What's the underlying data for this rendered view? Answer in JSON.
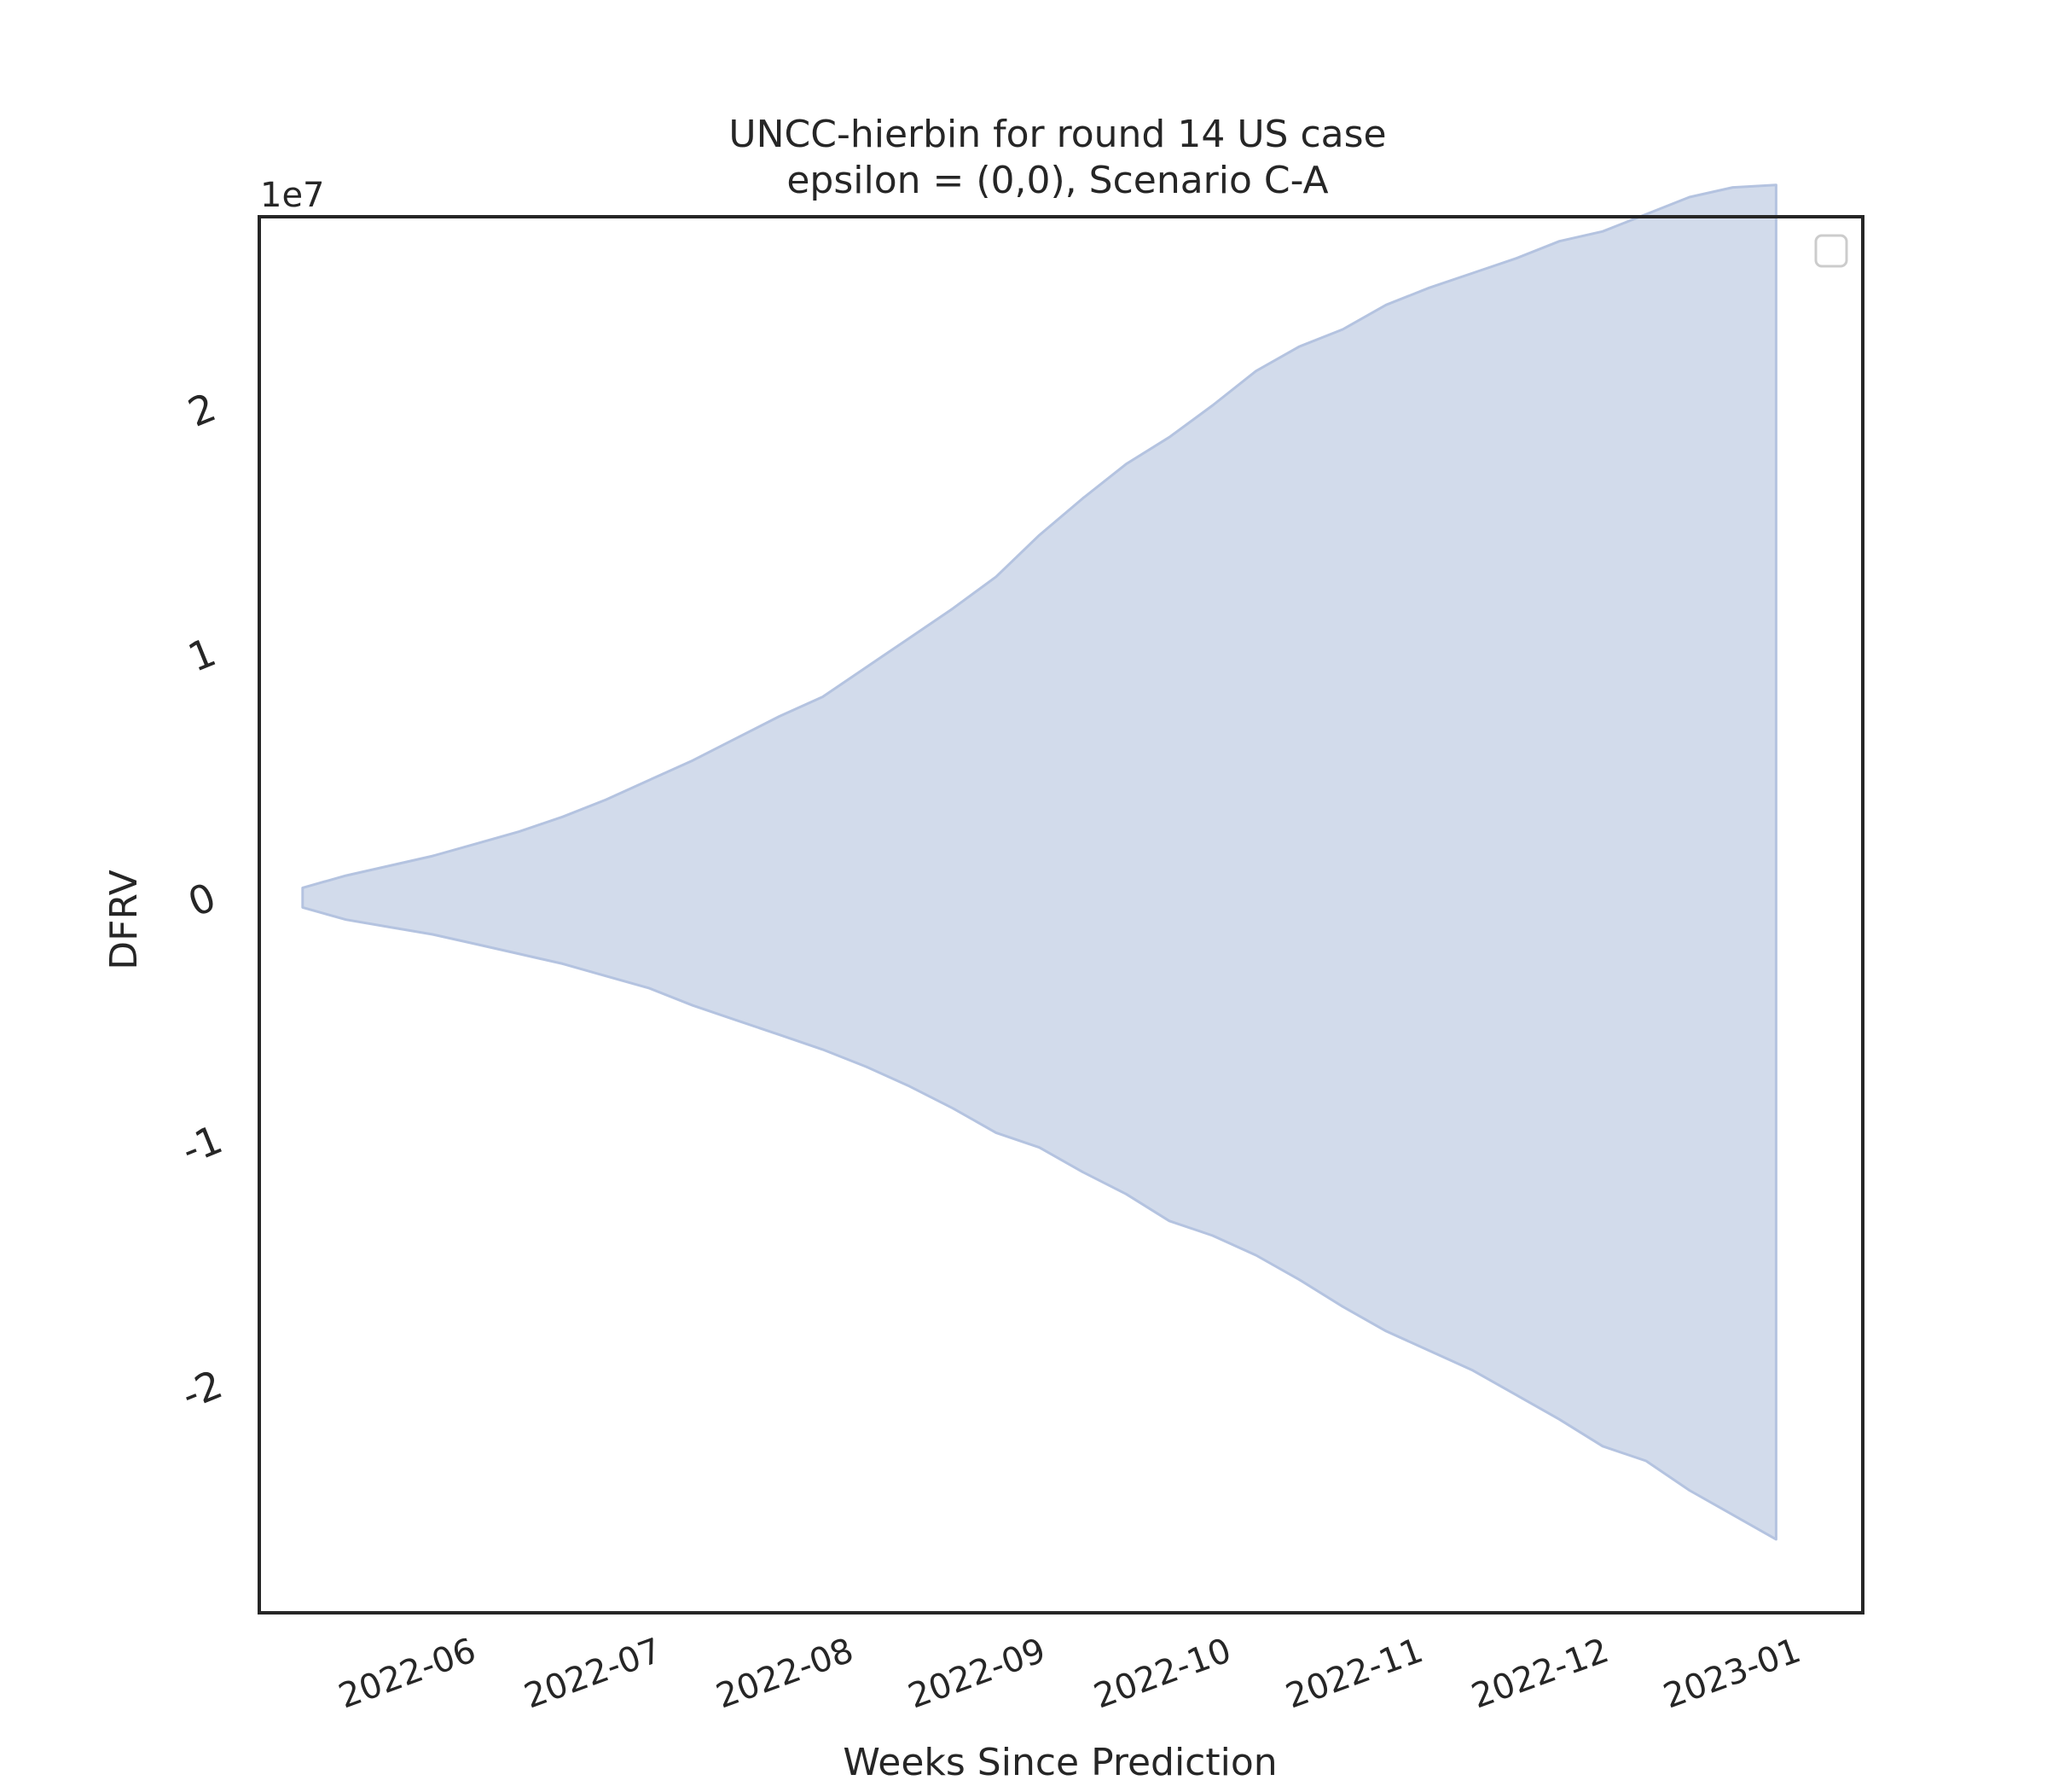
{
  "chart_data": {
    "type": "area",
    "title": [
      "UNCC-hierbin for round 14 US case",
      "epsilon = (0,0), Scenario C-A"
    ],
    "xlabel": "Weeks Since Prediction",
    "ylabel": "DFRV",
    "y_offset_label": "1e7",
    "y_scale": 10000000,
    "ylim": [
      -2.9,
      2.8
    ],
    "yticks": [
      -2,
      -1,
      0,
      1,
      2
    ],
    "ytick_labels": [
      "-2",
      "-1",
      "0",
      "1",
      "2"
    ],
    "xlim": [
      "2022-05-07",
      "2023-01-21"
    ],
    "xticks": [
      "2022-06-01",
      "2022-07-01",
      "2022-08-01",
      "2022-09-01",
      "2022-10-01",
      "2022-11-01",
      "2022-12-01",
      "2023-01-01"
    ],
    "xtick_labels": [
      "2022-06",
      "2022-07",
      "2022-08",
      "2022-09",
      "2022-10",
      "2022-11",
      "2022-12",
      "2023-01"
    ],
    "series": [
      {
        "fill_color": "#d2dbeb",
        "edge_color": "#b4c3e0",
        "x": [
          "2022-05-14",
          "2022-05-21",
          "2022-05-28",
          "2022-06-04",
          "2022-06-11",
          "2022-06-18",
          "2022-06-25",
          "2022-07-02",
          "2022-07-09",
          "2022-07-16",
          "2022-07-23",
          "2022-07-30",
          "2022-08-06",
          "2022-08-13",
          "2022-08-20",
          "2022-08-27",
          "2022-09-03",
          "2022-09-10",
          "2022-09-17",
          "2022-09-24",
          "2022-10-01",
          "2022-10-08",
          "2022-10-15",
          "2022-10-22",
          "2022-10-29",
          "2022-11-05",
          "2022-11-12",
          "2022-11-19",
          "2022-11-26",
          "2022-12-03",
          "2022-12-10",
          "2022-12-17",
          "2022-12-24",
          "2022-12-31",
          "2023-01-07"
        ],
        "upper": [
          0.06,
          0.11,
          0.15,
          0.19,
          0.24,
          0.29,
          0.35,
          0.42,
          0.5,
          0.58,
          0.67,
          0.76,
          0.84,
          0.96,
          1.08,
          1.2,
          1.33,
          1.5,
          1.65,
          1.79,
          1.9,
          2.03,
          2.17,
          2.27,
          2.34,
          2.44,
          2.51,
          2.57,
          2.63,
          2.7,
          2.74,
          2.81,
          2.88,
          2.92,
          2.93
        ],
        "lower": [
          -0.02,
          -0.07,
          -0.1,
          -0.13,
          -0.17,
          -0.21,
          -0.25,
          -0.3,
          -0.35,
          -0.42,
          -0.48,
          -0.54,
          -0.6,
          -0.67,
          -0.75,
          -0.84,
          -0.94,
          -1.0,
          -1.1,
          -1.19,
          -1.3,
          -1.36,
          -1.44,
          -1.54,
          -1.65,
          -1.75,
          -1.83,
          -1.91,
          -2.01,
          -2.11,
          -2.22,
          -2.28,
          -2.4,
          -2.5,
          -2.6
        ]
      }
    ],
    "legend": {
      "placement": "top-right",
      "entries": []
    },
    "grid": false
  }
}
